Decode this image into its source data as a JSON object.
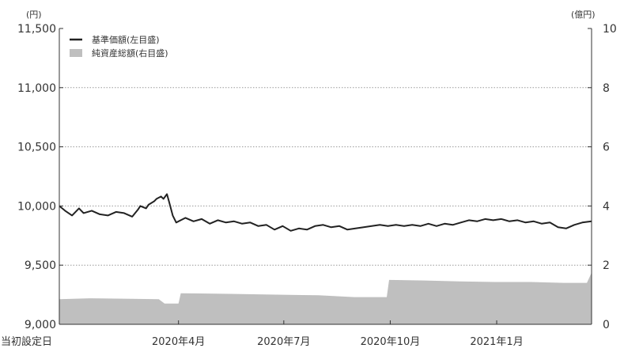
{
  "chart_data": {
    "type": "line",
    "left_unit": "(円)",
    "right_unit": "(億円)",
    "left_ylim": [
      9000,
      11500
    ],
    "right_ylim": [
      0,
      10
    ],
    "left_ticks": [
      {
        "v": 9000,
        "label": "9,000"
      },
      {
        "v": 9500,
        "label": "9,500"
      },
      {
        "v": 10000,
        "label": "10,000"
      },
      {
        "v": 10500,
        "label": "10,500"
      },
      {
        "v": 11000,
        "label": "11,000"
      },
      {
        "v": 11500,
        "label": "11,500"
      }
    ],
    "right_ticks": [
      {
        "v": 0,
        "label": "0"
      },
      {
        "v": 2,
        "label": "2"
      },
      {
        "v": 4,
        "label": "4"
      },
      {
        "v": 6,
        "label": "6"
      },
      {
        "v": 8,
        "label": "8"
      },
      {
        "v": 10,
        "label": "10"
      }
    ],
    "x_range": [
      "2019-12-20",
      "2021-03-24"
    ],
    "x_ticks": [
      {
        "date": "2019-12-20",
        "label": "当初設定日"
      },
      {
        "date": "2020-04-01",
        "label": "2020年4月"
      },
      {
        "date": "2020-07-01",
        "label": "2020年7月"
      },
      {
        "date": "2020-10-01",
        "label": "2020年10月"
      },
      {
        "date": "2021-01-01",
        "label": "2021年1月"
      }
    ],
    "grid": "horizontal dotted",
    "legend_position": "top-left",
    "series": [
      {
        "name": "基準価額(左目盛)",
        "axis": "left",
        "kind": "line",
        "color": "#222222",
        "points": [
          [
            "2019-12-20",
            10000
          ],
          [
            "2019-12-25",
            9960
          ],
          [
            "2019-12-31",
            9920
          ],
          [
            "2020-01-06",
            9980
          ],
          [
            "2020-01-10",
            9940
          ],
          [
            "2020-01-17",
            9960
          ],
          [
            "2020-01-24",
            9930
          ],
          [
            "2020-01-31",
            9920
          ],
          [
            "2020-02-07",
            9950
          ],
          [
            "2020-02-14",
            9940
          ],
          [
            "2020-02-21",
            9910
          ],
          [
            "2020-02-26",
            9970
          ],
          [
            "2020-02-28",
            10000
          ],
          [
            "2020-03-04",
            9980
          ],
          [
            "2020-03-06",
            10010
          ],
          [
            "2020-03-11",
            10040
          ],
          [
            "2020-03-13",
            10060
          ],
          [
            "2020-03-17",
            10080
          ],
          [
            "2020-03-19",
            10060
          ],
          [
            "2020-03-22",
            10100
          ],
          [
            "2020-03-24",
            10030
          ],
          [
            "2020-03-27",
            9920
          ],
          [
            "2020-03-30",
            9860
          ],
          [
            "2020-04-07",
            9900
          ],
          [
            "2020-04-14",
            9870
          ],
          [
            "2020-04-21",
            9890
          ],
          [
            "2020-04-28",
            9850
          ],
          [
            "2020-05-05",
            9880
          ],
          [
            "2020-05-12",
            9860
          ],
          [
            "2020-05-19",
            9870
          ],
          [
            "2020-05-26",
            9850
          ],
          [
            "2020-06-02",
            9860
          ],
          [
            "2020-06-09",
            9830
          ],
          [
            "2020-06-16",
            9840
          ],
          [
            "2020-06-23",
            9800
          ],
          [
            "2020-06-30",
            9830
          ],
          [
            "2020-07-07",
            9790
          ],
          [
            "2020-07-14",
            9810
          ],
          [
            "2020-07-21",
            9800
          ],
          [
            "2020-07-28",
            9830
          ],
          [
            "2020-08-04",
            9840
          ],
          [
            "2020-08-11",
            9820
          ],
          [
            "2020-08-18",
            9830
          ],
          [
            "2020-08-25",
            9800
          ],
          [
            "2020-09-01",
            9810
          ],
          [
            "2020-09-08",
            9820
          ],
          [
            "2020-09-15",
            9830
          ],
          [
            "2020-09-22",
            9840
          ],
          [
            "2020-09-29",
            9830
          ],
          [
            "2020-10-06",
            9840
          ],
          [
            "2020-10-13",
            9830
          ],
          [
            "2020-10-20",
            9840
          ],
          [
            "2020-10-27",
            9830
          ],
          [
            "2020-11-03",
            9850
          ],
          [
            "2020-11-10",
            9830
          ],
          [
            "2020-11-17",
            9850
          ],
          [
            "2020-11-24",
            9840
          ],
          [
            "2020-12-01",
            9860
          ],
          [
            "2020-12-08",
            9880
          ],
          [
            "2020-12-15",
            9870
          ],
          [
            "2020-12-22",
            9890
          ],
          [
            "2020-12-29",
            9880
          ],
          [
            "2021-01-05",
            9890
          ],
          [
            "2021-01-12",
            9870
          ],
          [
            "2021-01-19",
            9880
          ],
          [
            "2021-01-26",
            9860
          ],
          [
            "2021-02-02",
            9870
          ],
          [
            "2021-02-09",
            9850
          ],
          [
            "2021-02-16",
            9860
          ],
          [
            "2021-02-23",
            9820
          ],
          [
            "2021-03-02",
            9810
          ],
          [
            "2021-03-09",
            9840
          ],
          [
            "2021-03-16",
            9860
          ],
          [
            "2021-03-24",
            9870
          ]
        ]
      },
      {
        "name": "純資産総額(右目盛)",
        "axis": "right",
        "kind": "area",
        "color": "#bfbfbf",
        "points": [
          [
            "2019-12-20",
            0.85
          ],
          [
            "2020-01-15",
            0.88
          ],
          [
            "2020-02-20",
            0.86
          ],
          [
            "2020-03-15",
            0.85
          ],
          [
            "2020-03-20",
            0.7
          ],
          [
            "2020-04-01",
            0.7
          ],
          [
            "2020-04-03",
            1.05
          ],
          [
            "2020-05-15",
            1.03
          ],
          [
            "2020-06-30",
            1.0
          ],
          [
            "2020-07-31",
            0.98
          ],
          [
            "2020-08-31",
            0.92
          ],
          [
            "2020-09-28",
            0.92
          ],
          [
            "2020-09-30",
            1.5
          ],
          [
            "2020-10-31",
            1.48
          ],
          [
            "2020-11-30",
            1.45
          ],
          [
            "2020-12-31",
            1.43
          ],
          [
            "2021-01-31",
            1.43
          ],
          [
            "2021-02-28",
            1.4
          ],
          [
            "2021-03-20",
            1.4
          ],
          [
            "2021-03-24",
            1.75
          ]
        ]
      }
    ]
  }
}
